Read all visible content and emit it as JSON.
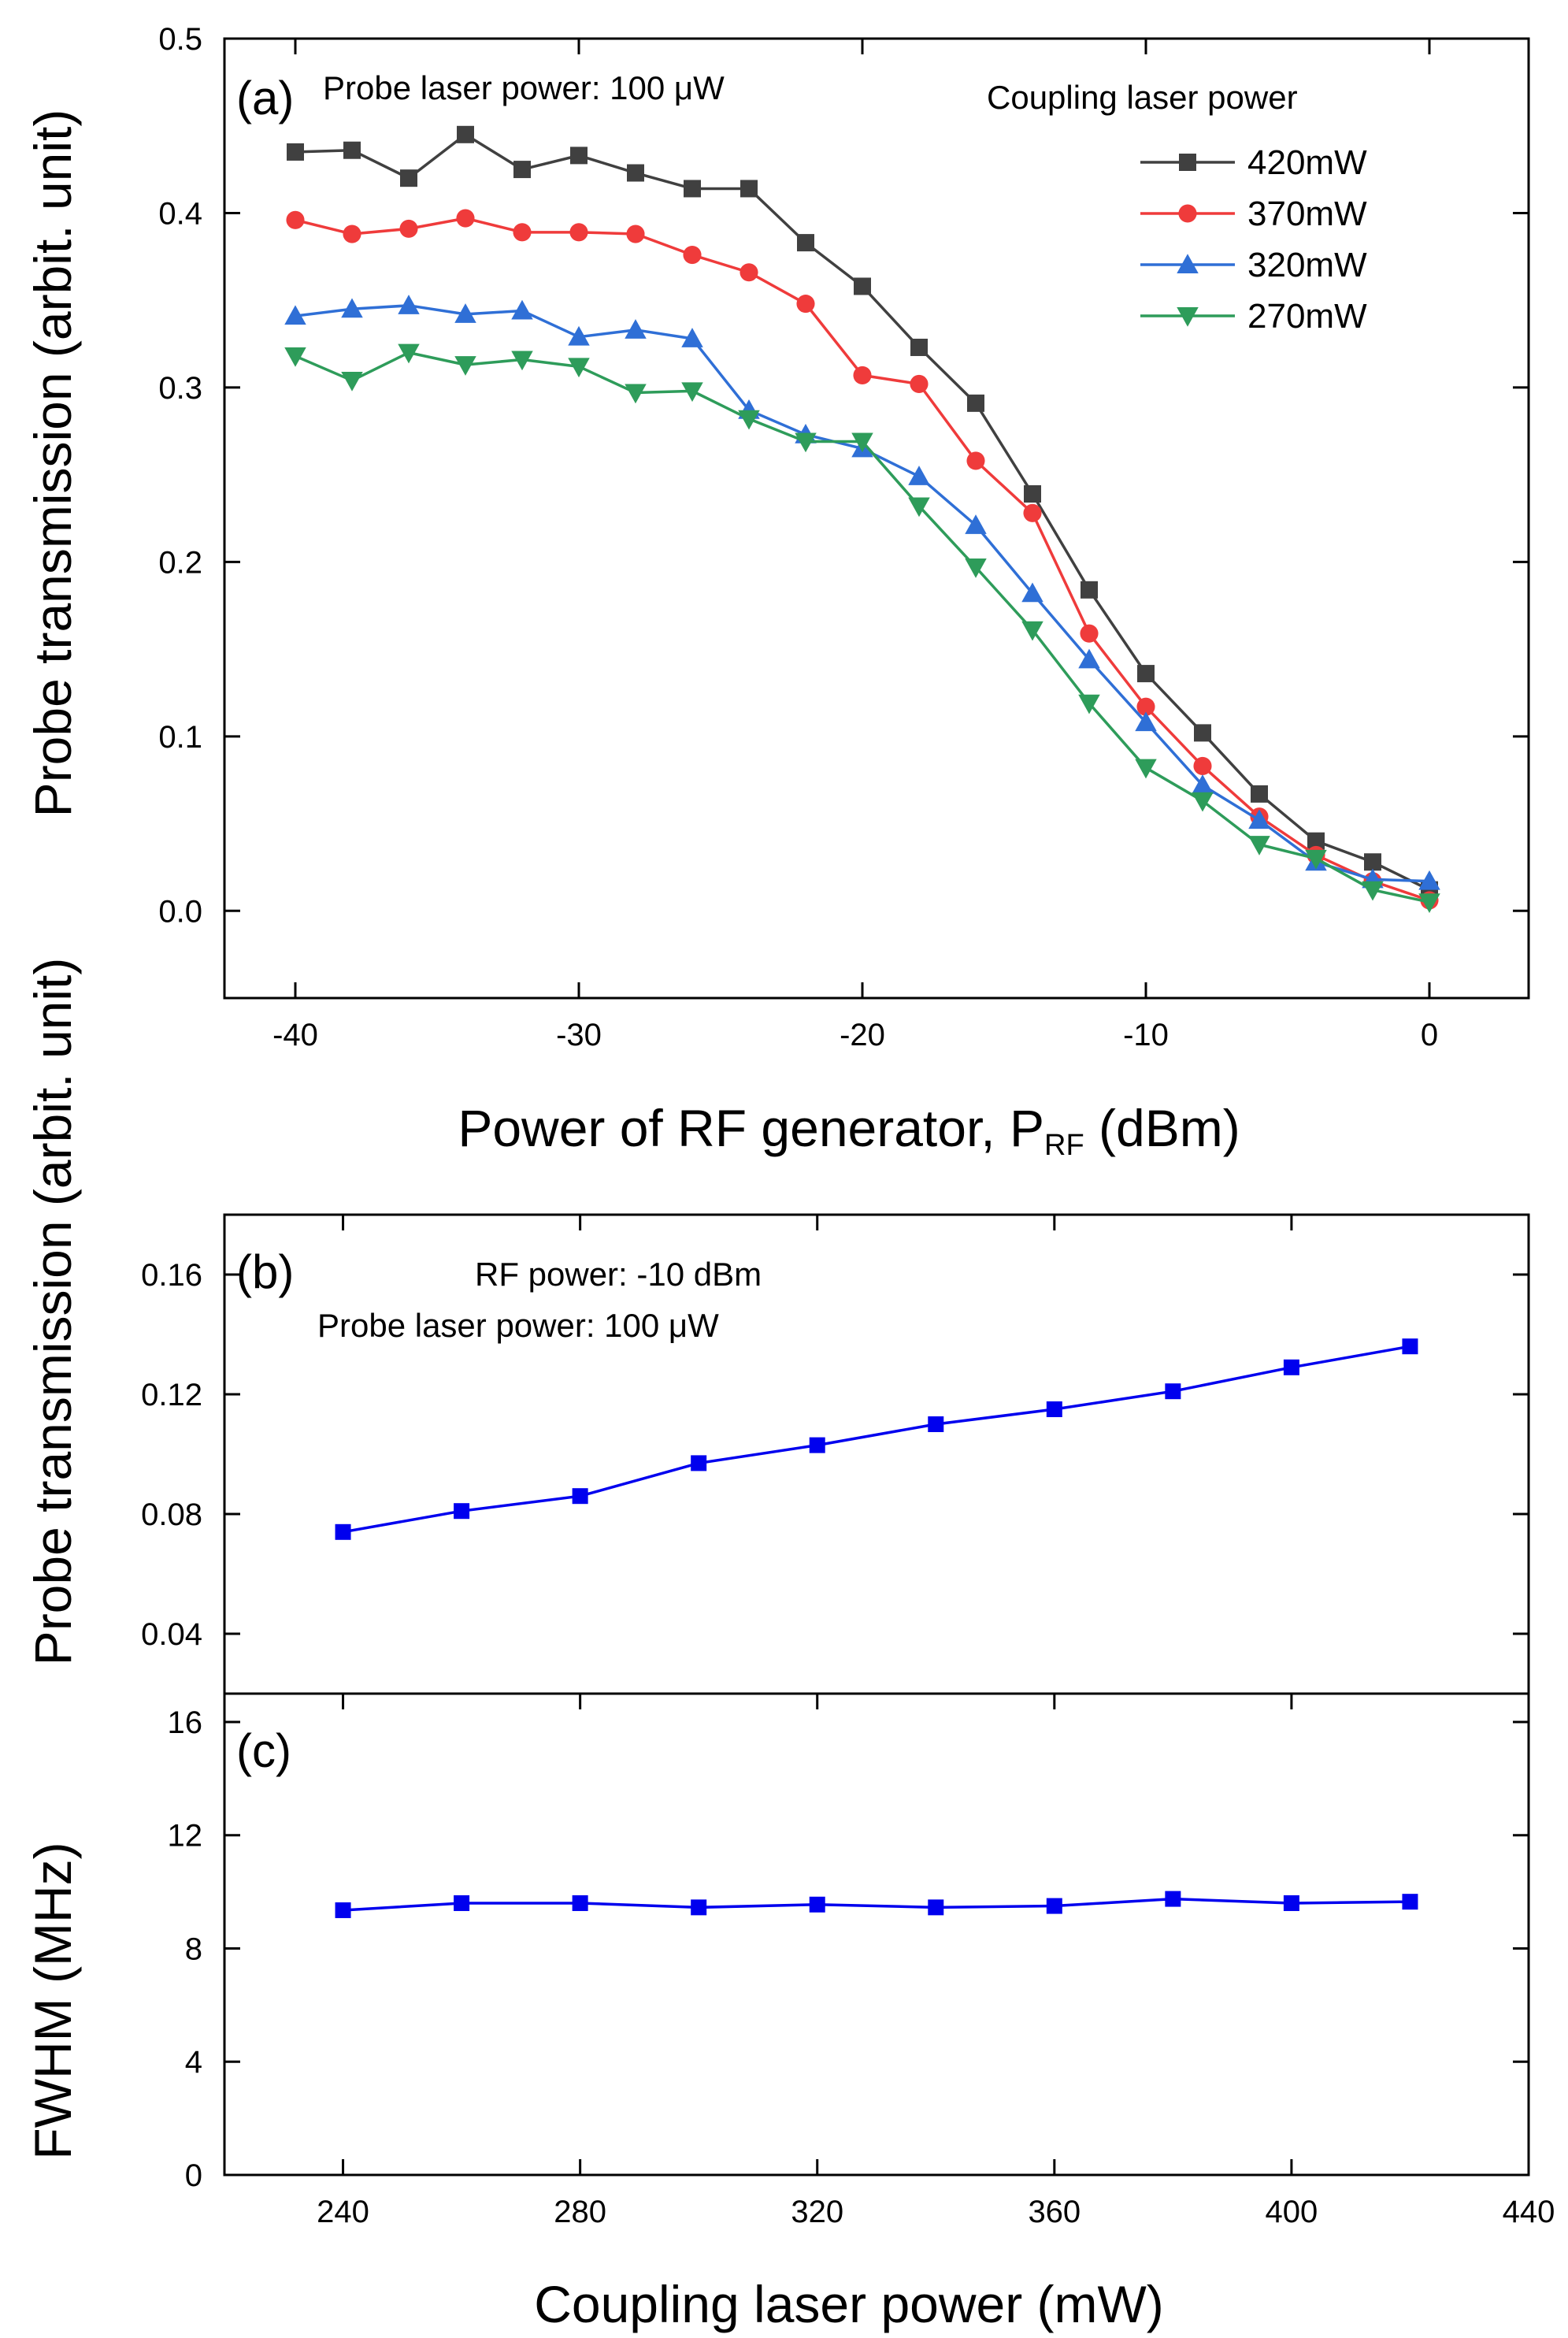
{
  "chart_data": [
    {
      "panel": "a",
      "type": "line",
      "panel_label": "(a)",
      "annotation": "Probe laser power: 100 μW",
      "legend_title": "Coupling laser power",
      "xlabel": "Power of RF generator, P",
      "xlabel_sub": "RF",
      "xlabel_suffix": " (dBm)",
      "ylabel": "Probe transmission (arbit. unit)",
      "xlim": [
        -42.5,
        3.5
      ],
      "ylim": [
        -0.05,
        0.5
      ],
      "xticks": [
        -40,
        -30,
        -20,
        -10,
        0
      ],
      "xtick_labels": [
        "-40",
        "-30",
        "-20",
        "-10",
        "0"
      ],
      "yticks": [
        0.0,
        0.1,
        0.2,
        0.3,
        0.4,
        0.5
      ],
      "ytick_labels": [
        "0.0",
        "0.1",
        "0.2",
        "0.3",
        "0.4",
        "0.5"
      ],
      "x": [
        -40,
        -38,
        -36,
        -34,
        -32,
        -30,
        -28,
        -26,
        -24,
        -22,
        -20,
        -18,
        -16,
        -14,
        -12,
        -10,
        -8,
        -6,
        -4,
        -2,
        0
      ],
      "series": [
        {
          "name": "420mW",
          "color": "#404040",
          "marker": "square",
          "values": [
            0.435,
            0.436,
            0.42,
            0.445,
            0.425,
            0.433,
            0.423,
            0.414,
            0.414,
            0.383,
            0.358,
            0.323,
            0.291,
            0.239,
            0.184,
            0.136,
            0.102,
            0.067,
            0.04,
            0.028,
            0.012
          ]
        },
        {
          "name": "370mW",
          "color": "#ef3b3b",
          "marker": "circle",
          "values": [
            0.396,
            0.388,
            0.391,
            0.397,
            0.389,
            0.389,
            0.388,
            0.376,
            0.366,
            0.348,
            0.307,
            0.302,
            0.258,
            0.228,
            0.159,
            0.117,
            0.083,
            0.054,
            0.032,
            0.017,
            0.006
          ]
        },
        {
          "name": "320mW",
          "color": "#2f6fd6",
          "marker": "triangle-up",
          "values": [
            0.341,
            0.345,
            0.347,
            0.342,
            0.344,
            0.329,
            0.333,
            0.328,
            0.287,
            0.273,
            0.265,
            0.249,
            0.221,
            0.182,
            0.144,
            0.108,
            0.072,
            0.052,
            0.028,
            0.018,
            0.017
          ]
        },
        {
          "name": "270mW",
          "color": "#2e9c5a",
          "marker": "triangle-down",
          "values": [
            0.318,
            0.304,
            0.32,
            0.313,
            0.316,
            0.312,
            0.297,
            0.298,
            0.282,
            0.269,
            0.269,
            0.232,
            0.197,
            0.161,
            0.119,
            0.082,
            0.063,
            0.038,
            0.03,
            0.012,
            0.005
          ]
        }
      ]
    },
    {
      "panel": "b",
      "type": "line",
      "panel_label": "(b)",
      "annotation_line1": "RF power: -10 dBm",
      "annotation_line2": "Probe laser power: 100 μW",
      "ylabel": "Probe transmission (arbit. unit)",
      "xlim": [
        220,
        440
      ],
      "ylim": [
        0.02,
        0.18
      ],
      "yticks": [
        0.04,
        0.08,
        0.12,
        0.16
      ],
      "ytick_labels": [
        "0.04",
        "0.08",
        "0.12",
        "0.16"
      ],
      "x": [
        240,
        260,
        280,
        300,
        320,
        340,
        360,
        380,
        400,
        420
      ],
      "series": [
        {
          "name": "Probe transmission",
          "color": "#0000ee",
          "marker": "square",
          "values": [
            0.074,
            0.081,
            0.086,
            0.097,
            0.103,
            0.11,
            0.115,
            0.121,
            0.129,
            0.136
          ]
        }
      ]
    },
    {
      "panel": "c",
      "type": "line",
      "panel_label": "(c)",
      "xlabel": "Coupling laser power (mW)",
      "ylabel": "FWHM (MHz)",
      "xlim": [
        220,
        440
      ],
      "ylim": [
        0,
        17
      ],
      "xticks": [
        240,
        280,
        320,
        360,
        400,
        440
      ],
      "xtick_labels": [
        "240",
        "280",
        "320",
        "360",
        "400",
        "440"
      ],
      "yticks": [
        0,
        4,
        8,
        12,
        16
      ],
      "ytick_labels": [
        "0",
        "4",
        "8",
        "12",
        "16"
      ],
      "x": [
        240,
        260,
        280,
        300,
        320,
        340,
        360,
        380,
        400,
        420
      ],
      "series": [
        {
          "name": "FWHM",
          "color": "#0000ee",
          "marker": "square",
          "values": [
            9.35,
            9.6,
            9.6,
            9.45,
            9.55,
            9.45,
            9.5,
            9.75,
            9.6,
            9.65
          ]
        }
      ]
    }
  ]
}
